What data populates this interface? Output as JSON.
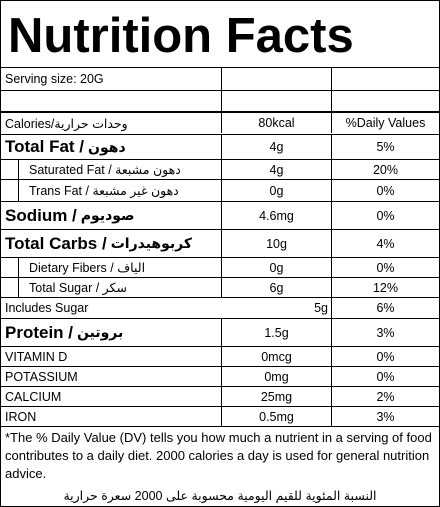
{
  "title": "Nutrition Facts",
  "serving": "Serving size: 20G",
  "header": {
    "calories_label": "Calories/وحدات حرارية",
    "calories_amount": "80kcal",
    "daily_values": "%Daily Values"
  },
  "rows": {
    "total_fat": {
      "en": "Total Fat /",
      "ar": "دهون",
      "amount": "4g",
      "dv": "5%"
    },
    "saturated_fat": {
      "label": "Saturated Fat / دهون مشبعة",
      "amount": "4g",
      "dv": "20%"
    },
    "trans_fat": {
      "label": "Trans Fat / دهون غير مشبعة",
      "amount": "0g",
      "dv": "0%"
    },
    "sodium": {
      "en": "Sodium /",
      "ar": "صوديوم",
      "amount": "4.6mg",
      "dv": "0%"
    },
    "total_carbs": {
      "en": "Total Carbs /",
      "ar": "كربوهيدرات",
      "amount": "10g",
      "dv": "4%"
    },
    "dietary_fibers": {
      "label": "Dietary Fibers / الياف",
      "amount": "0g",
      "dv": "0%"
    },
    "total_sugar": {
      "label": "Total Sugar / سكر",
      "amount": "6g",
      "dv": "12%"
    },
    "includes_sugar": {
      "label": "Includes Sugar",
      "amount": "5g",
      "dv": "6%"
    },
    "protein": {
      "en": "Protein /",
      "ar": "بروتين",
      "amount": "1.5g",
      "dv": "3%"
    },
    "vitamin_d": {
      "label": "VITAMIN D",
      "amount": "0mcg",
      "dv": "0%"
    },
    "potassium": {
      "label": "POTASSIUM",
      "amount": "0mg",
      "dv": "0%"
    },
    "calcium": {
      "label": "CALCIUM",
      "amount": "25mg",
      "dv": "2%"
    },
    "iron": {
      "label": "IRON",
      "amount": "0.5mg",
      "dv": "3%"
    }
  },
  "footnote": "*The % Daily Value (DV) tells you how much a nutrient in a serving of food contributes to a daily diet. 2000 calories a day is used for general nutrition advice.",
  "footnote_ar": "النسبة المئوية للقيم اليومية محسوبة على 2000 سعرة حرارية"
}
